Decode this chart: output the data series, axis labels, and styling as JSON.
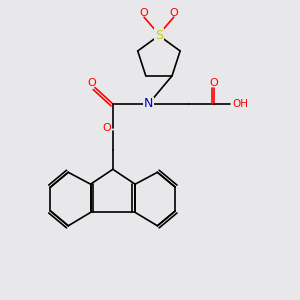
{
  "bg_color": "#e8e8ea",
  "atom_colors": {
    "O": "#ff0000",
    "N": "#0000cc",
    "S": "#cccc00",
    "H": "#808080",
    "C": "#000000"
  },
  "bond_color": "#000000"
}
